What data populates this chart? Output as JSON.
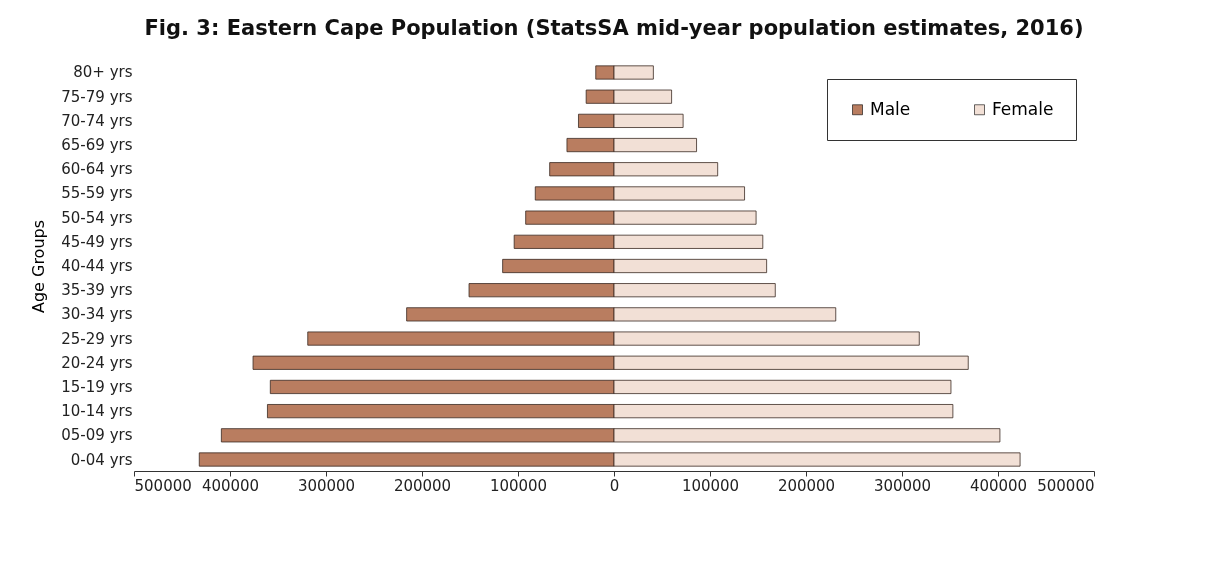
{
  "chart_data": {
    "type": "bar",
    "orientation": "horizontal",
    "title": "Fig. 3: Eastern Cape Population (StatsSA mid-year population estimates, 2016)",
    "ylabel": "Age Groups",
    "categories": [
      "80+ yrs",
      "75-79 yrs",
      "70-74 yrs",
      "65-69 yrs",
      "60-64 yrs",
      "55-59 yrs",
      "50-54 yrs",
      "45-49 yrs",
      "40-44 yrs",
      "35-39 yrs",
      "30-34 yrs",
      "25-29 yrs",
      "20-24 yrs",
      "15-19 yrs",
      "10-14 yrs",
      "05-09 yrs",
      "0-04 yrs"
    ],
    "series": [
      {
        "name": "Male",
        "color": "#b97d60",
        "values": [
          -19000,
          -29000,
          -37000,
          -49000,
          -67000,
          -82000,
          -92000,
          -104000,
          -116000,
          -151000,
          -216000,
          -319000,
          -376000,
          -358000,
          -361000,
          -409000,
          -432000
        ]
      },
      {
        "name": "Female",
        "color": "#f2e0d6",
        "values": [
          41000,
          60000,
          72000,
          86000,
          108000,
          136000,
          148000,
          155000,
          159000,
          168000,
          231000,
          318000,
          369000,
          351000,
          353000,
          402000,
          423000
        ]
      }
    ],
    "xlim": [
      -500000,
      500000
    ],
    "xticks": [
      {
        "value": -500000,
        "label": "500000"
      },
      {
        "value": -400000,
        "label": "400000"
      },
      {
        "value": -300000,
        "label": "300000"
      },
      {
        "value": -200000,
        "label": "200000"
      },
      {
        "value": -100000,
        "label": "100000"
      },
      0,
      100000,
      200000,
      300000,
      400000,
      500000
    ],
    "grid": false,
    "legend": "top right",
    "stacked": true
  }
}
